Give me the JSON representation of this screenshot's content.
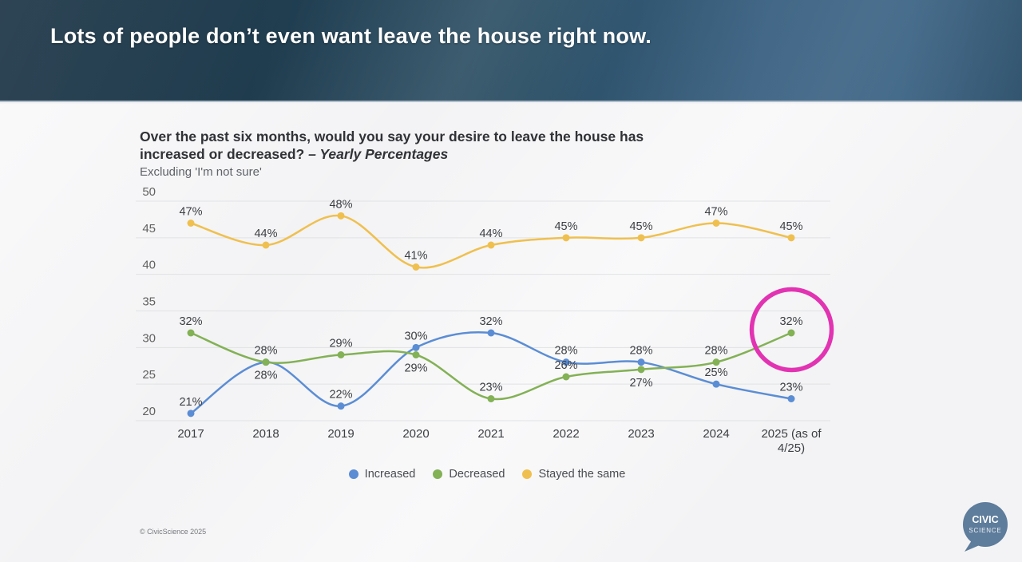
{
  "header": {
    "title": "Lots of people don’t even want leave the house right now."
  },
  "chart": {
    "title_main": "Over the past six months, would you say your desire to leave the house has increased or decreased?",
    "title_emphasis": "– Yearly Percentages",
    "subtitle": "Excluding 'I'm not sure'"
  },
  "chart_data": {
    "type": "line",
    "title": "Over the past six months, would you say your desire to leave the house has increased or decreased? – Yearly Percentages",
    "subtitle": "Excluding 'I'm not sure'",
    "categories": [
      "2017",
      "2018",
      "2019",
      "2020",
      "2021",
      "2022",
      "2023",
      "2024",
      "2025 (as of 4/25)"
    ],
    "xtick_lines": [
      [
        "2017"
      ],
      [
        "2018"
      ],
      [
        "2019"
      ],
      [
        "2020"
      ],
      [
        "2021"
      ],
      [
        "2022"
      ],
      [
        "2023"
      ],
      [
        "2024"
      ],
      [
        "2025 (as of",
        "4/25)"
      ]
    ],
    "ylim": [
      20,
      50
    ],
    "ytick_step": 5,
    "grid": true,
    "legend_position": "bottom",
    "value_suffix": "%",
    "series": [
      {
        "name": "Increased",
        "color": "#5b8dd4",
        "values": [
          21,
          28,
          22,
          30,
          32,
          28,
          28,
          25,
          23
        ],
        "label_positions": [
          "above",
          "below",
          "above",
          "above",
          "above",
          "above",
          "above",
          "above",
          "above"
        ]
      },
      {
        "name": "Decreased",
        "color": "#83b155",
        "values": [
          32,
          28,
          29,
          29,
          23,
          26,
          27,
          28,
          32
        ],
        "label_positions": [
          "above",
          "above",
          "above",
          "below",
          "above",
          "above",
          "below",
          "above",
          "above"
        ]
      },
      {
        "name": "Stayed the same",
        "color": "#efc04f",
        "values": [
          47,
          44,
          48,
          41,
          44,
          45,
          45,
          47,
          45
        ],
        "label_positions": [
          "above",
          "above",
          "above",
          "above",
          "above",
          "above",
          "above",
          "above",
          "above"
        ]
      }
    ],
    "annotation": {
      "type": "highlight-circle",
      "series": "Decreased",
      "category": "2025 (as of 4/25)",
      "value": 32,
      "color": "#e233b2"
    }
  },
  "footer": {
    "copyright": "© CivicScience 2025",
    "logo_line1": "CIVIC",
    "logo_line2": "SCIENCE"
  },
  "colors": {
    "increased": "#5b8dd4",
    "decreased": "#83b155",
    "stayed": "#efc04f",
    "highlight": "#e233b2",
    "gridline": "#e1e2e4",
    "logo_bubble": "#5e7c9b"
  }
}
